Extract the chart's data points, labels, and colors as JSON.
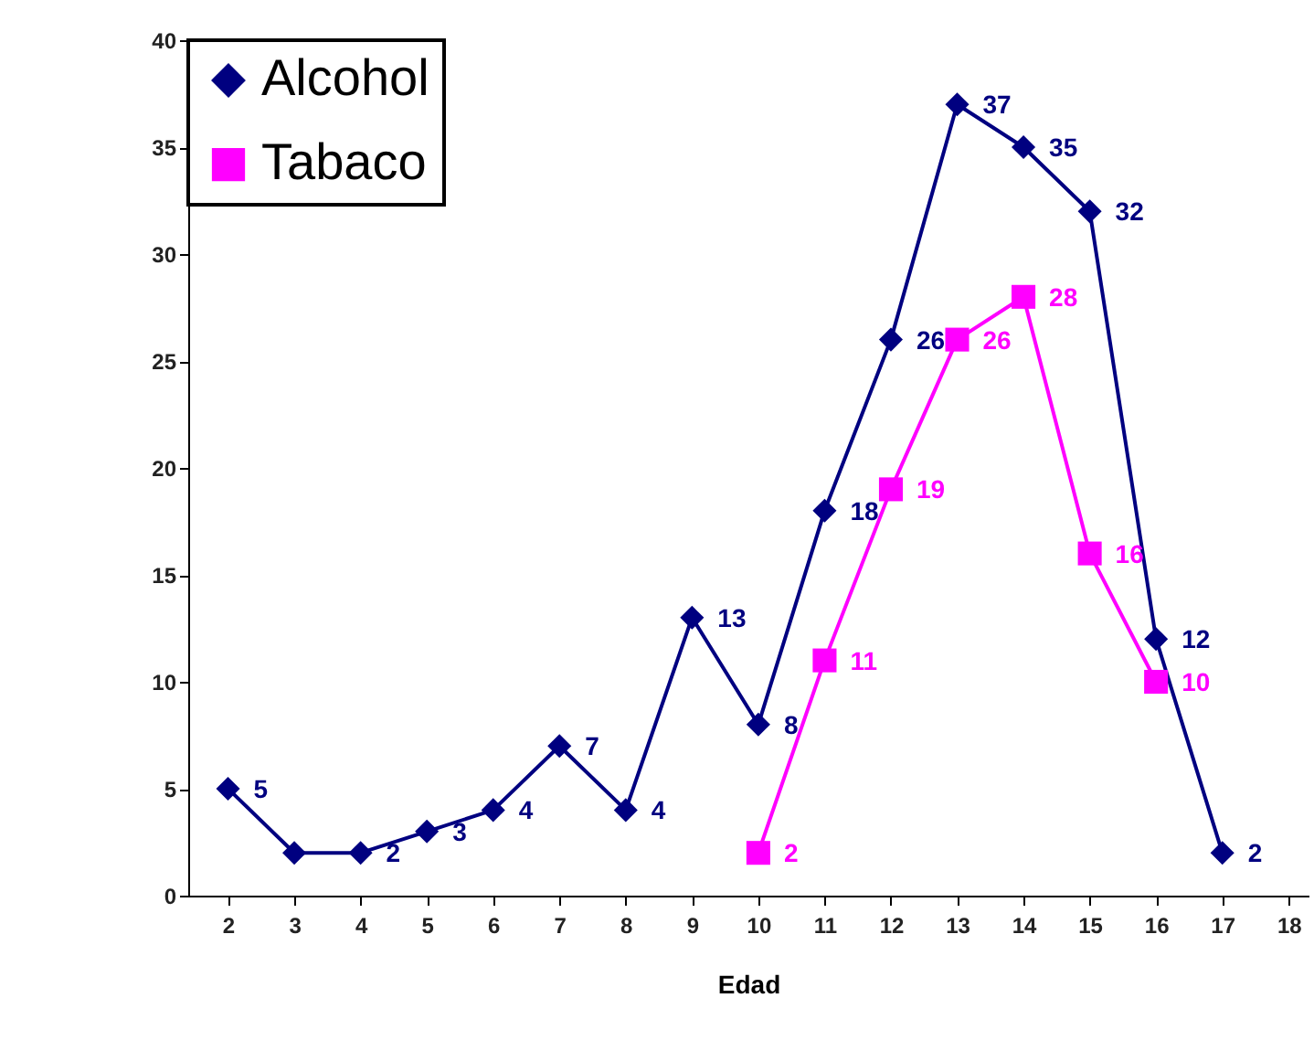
{
  "chart_data": {
    "type": "line",
    "xlabel": "Edad",
    "xlim": [
      1.4,
      18.3
    ],
    "xticks": [
      2,
      3,
      4,
      5,
      6,
      7,
      8,
      9,
      10,
      11,
      12,
      13,
      14,
      15,
      16,
      17,
      18
    ],
    "ylim": [
      0,
      40
    ],
    "yticks": [
      0,
      5,
      10,
      15,
      20,
      25,
      30,
      35,
      40
    ],
    "grid": false,
    "legend": "top left",
    "line_style": "solid",
    "series": [
      {
        "name": "Alcohol",
        "color": "#000080",
        "marker": "diamond",
        "x": [
          2,
          3,
          4,
          5,
          6,
          7,
          8,
          9,
          10,
          11,
          12,
          13,
          14,
          15,
          16,
          17
        ],
        "values": [
          5,
          2,
          2,
          3,
          4,
          7,
          4,
          13,
          8,
          18,
          26,
          37,
          35,
          32,
          12,
          2
        ],
        "value_labels": [
          "5",
          null,
          "2",
          "3",
          "4",
          "7",
          "4",
          "13",
          "8",
          "18",
          "26",
          "37",
          "35",
          "32",
          "12",
          "2"
        ]
      },
      {
        "name": "Tabaco",
        "color": "#ff00ff",
        "marker": "square",
        "x": [
          10,
          11,
          12,
          13,
          14,
          15,
          16
        ],
        "values": [
          2,
          11,
          19,
          26,
          28,
          16,
          10
        ],
        "value_labels": [
          "2",
          "11",
          "19",
          "26",
          "28",
          "16",
          "10"
        ]
      }
    ]
  }
}
